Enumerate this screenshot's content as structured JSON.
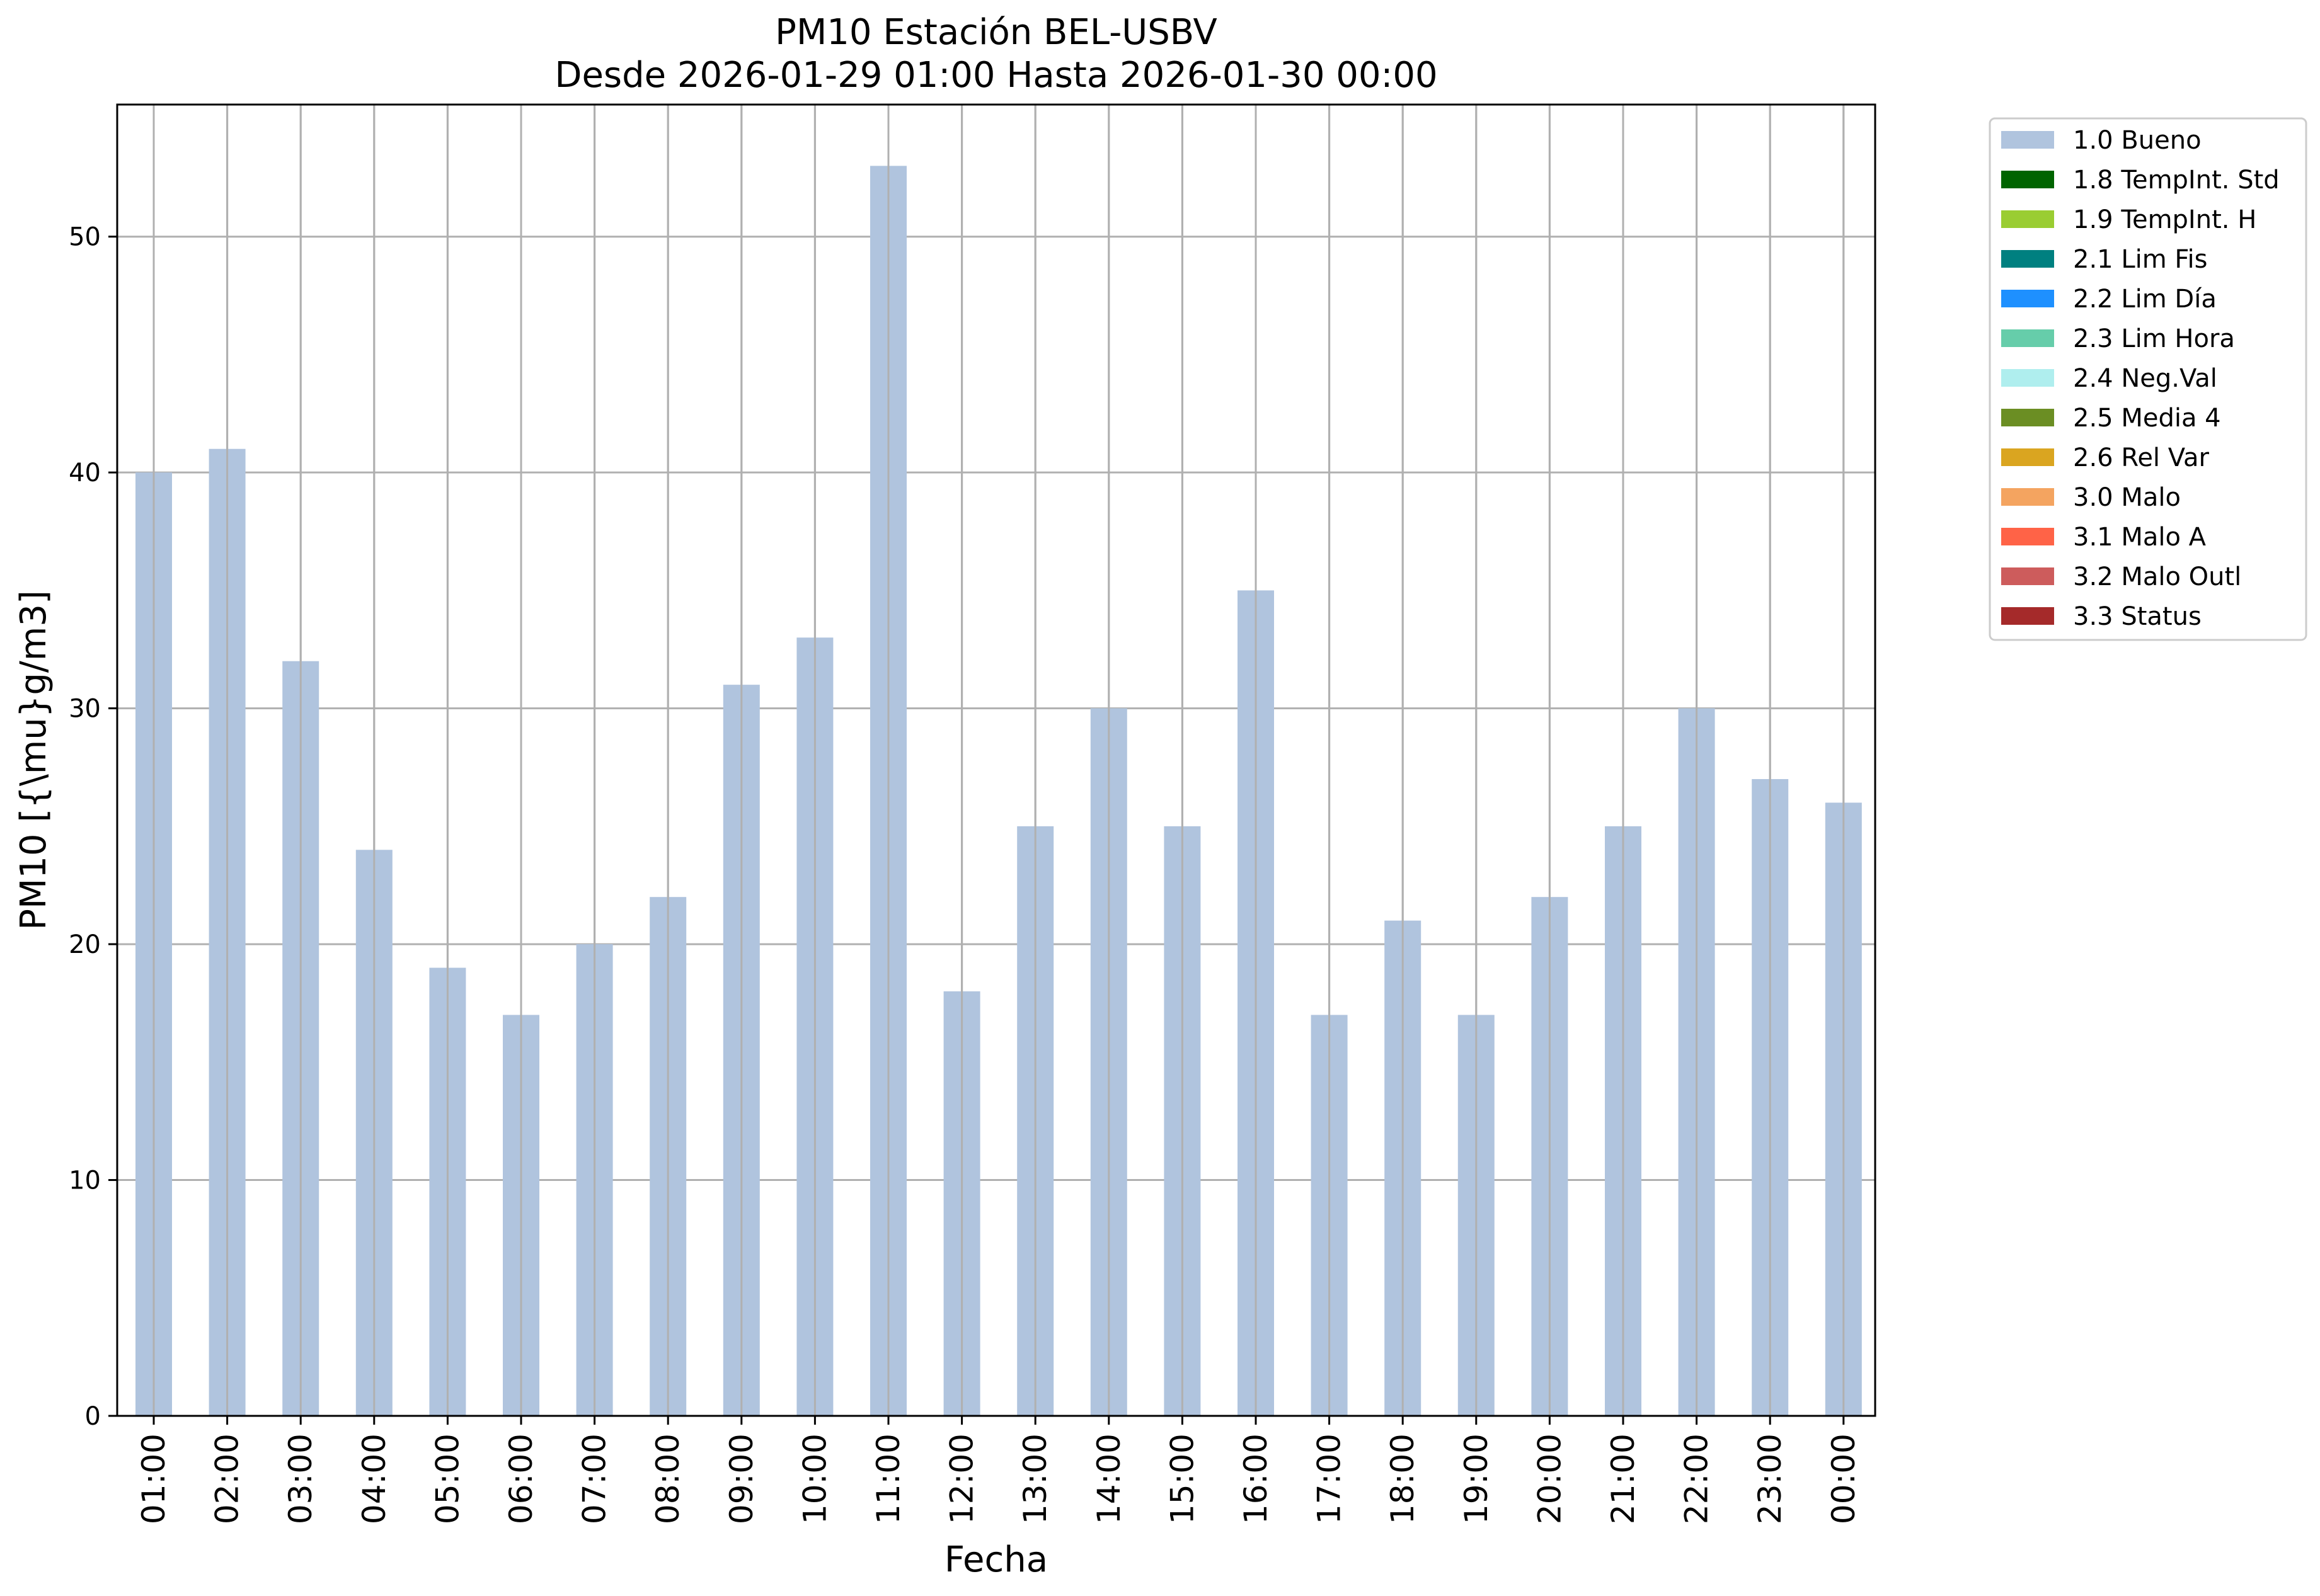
{
  "chart_data": {
    "type": "bar",
    "title": "PM10 Estación BEL-USBV",
    "subtitle": "Desde 2026-01-29 01:00 Hasta 2026-01-30 00:00",
    "xlabel": "Fecha",
    "ylabel": "PM10 [{\\mu}g/m3]",
    "ylim": [
      0,
      55.6
    ],
    "yticks": [
      0,
      10,
      20,
      30,
      40,
      50
    ],
    "grid": true,
    "legend_position": "outside-top-right",
    "categories": [
      "01:00",
      "02:00",
      "03:00",
      "04:00",
      "05:00",
      "06:00",
      "07:00",
      "08:00",
      "09:00",
      "10:00",
      "11:00",
      "12:00",
      "13:00",
      "14:00",
      "15:00",
      "16:00",
      "17:00",
      "18:00",
      "19:00",
      "20:00",
      "21:00",
      "22:00",
      "23:00",
      "00:00"
    ],
    "series": [
      {
        "name": "1.0 Bueno",
        "color": "#b0c4de",
        "values": [
          40,
          41,
          32,
          24,
          19,
          17,
          20,
          22,
          31,
          33,
          53,
          18,
          25,
          30,
          25,
          35,
          17,
          21,
          17,
          22,
          25,
          30,
          27,
          26
        ]
      }
    ],
    "legend": [
      {
        "label": "1.0 Bueno",
        "color": "#b0c4de"
      },
      {
        "label": "1.8 TempInt. Std",
        "color": "#006400"
      },
      {
        "label": "1.9 TempInt. H",
        "color": "#9acd32"
      },
      {
        "label": "2.1 Lim Fis",
        "color": "#008080"
      },
      {
        "label": "2.2 Lim Día",
        "color": "#1e90ff"
      },
      {
        "label": "2.3 Lim Hora",
        "color": "#66cdaa"
      },
      {
        "label": "2.4 Neg.Val",
        "color": "#afeeee"
      },
      {
        "label": "2.5 Media 4",
        "color": "#6b8e23"
      },
      {
        "label": "2.6 Rel Var",
        "color": "#daa520"
      },
      {
        "label": "3.0 Malo",
        "color": "#f4a460"
      },
      {
        "label": "3.1 Malo A",
        "color": "#ff6347"
      },
      {
        "label": "3.2 Malo Outl",
        "color": "#cd5c5c"
      },
      {
        "label": "3.3 Status",
        "color": "#a52a2a"
      }
    ]
  }
}
